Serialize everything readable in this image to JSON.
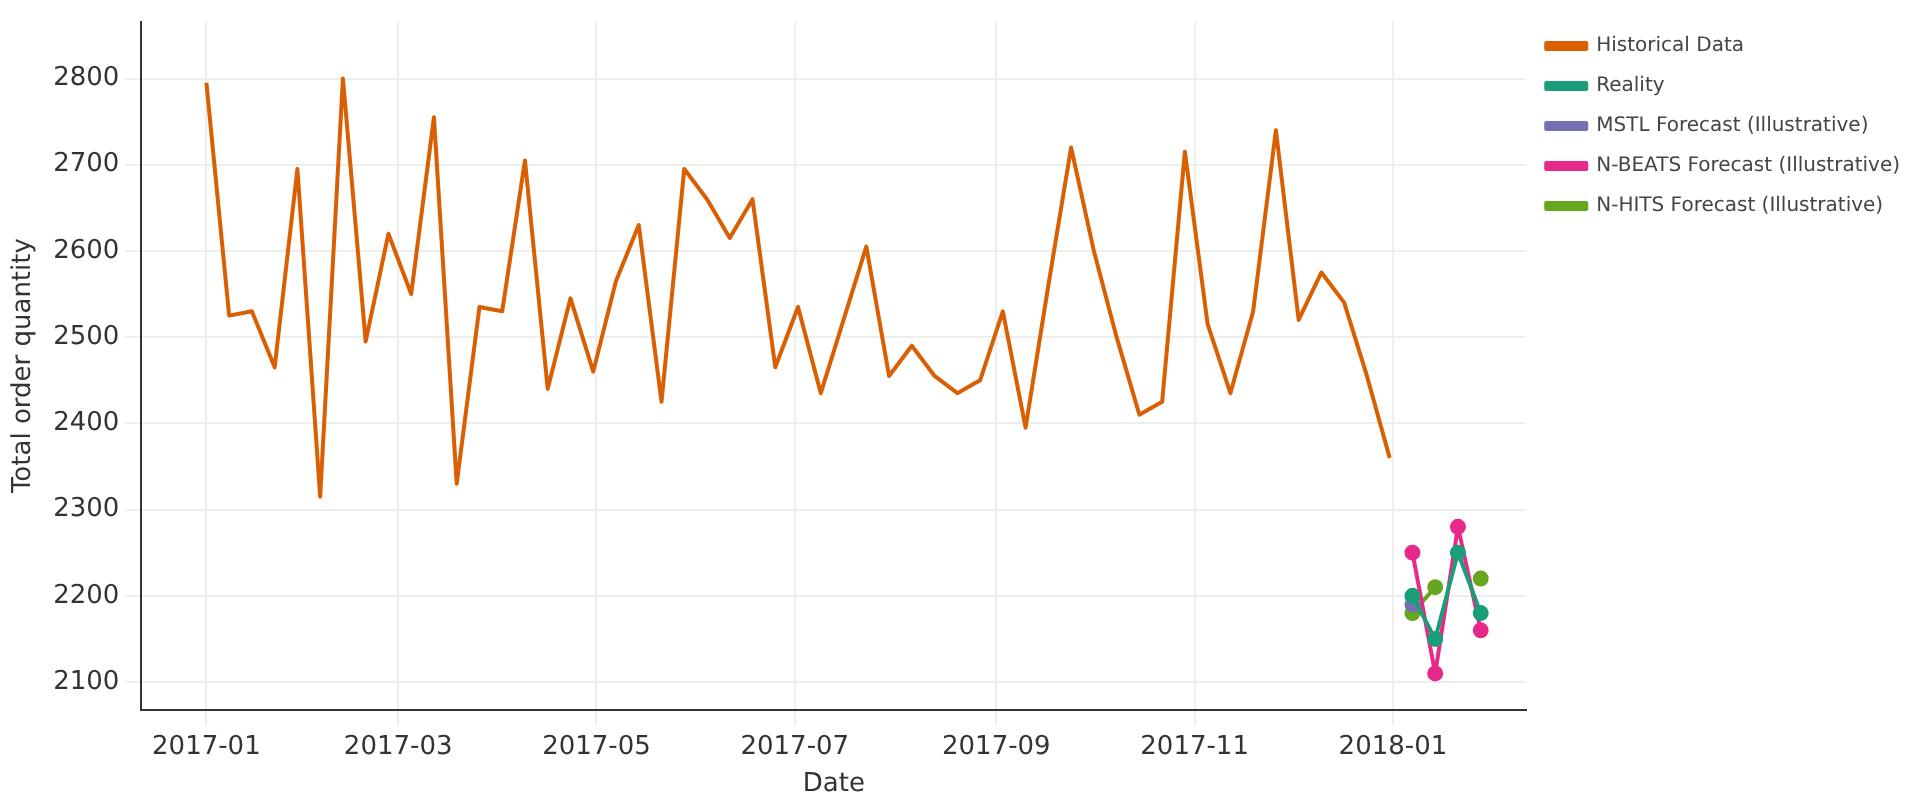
{
  "chart_data": {
    "type": "line",
    "xlabel": "Date",
    "ylabel": "Total order quantity",
    "xlim": [
      "2016-12-12",
      "2018-02-11"
    ],
    "xticks": [
      {
        "value": "2017-01-01",
        "label": "2017-01"
      },
      {
        "value": "2017-03-01",
        "label": "2017-03"
      },
      {
        "value": "2017-05-01",
        "label": "2017-05"
      },
      {
        "value": "2017-07-01",
        "label": "2017-07"
      },
      {
        "value": "2017-09-01",
        "label": "2017-09"
      },
      {
        "value": "2017-11-01",
        "label": "2017-11"
      },
      {
        "value": "2018-01-01",
        "label": "2018-01"
      }
    ],
    "ylim": [
      2068,
      2866
    ],
    "yticks": [
      2100,
      2200,
      2300,
      2400,
      2500,
      2600,
      2700,
      2800
    ],
    "grid": true,
    "legend": "right",
    "line_style": "solid",
    "series": [
      {
        "name": "Historical Data",
        "color": "#d95f02",
        "marker": "none",
        "x": [
          "2017-01-01",
          "2017-01-08",
          "2017-01-15",
          "2017-01-22",
          "2017-01-29",
          "2017-02-05",
          "2017-02-12",
          "2017-02-19",
          "2017-02-26",
          "2017-03-05",
          "2017-03-12",
          "2017-03-19",
          "2017-03-26",
          "2017-04-02",
          "2017-04-09",
          "2017-04-16",
          "2017-04-23",
          "2017-04-30",
          "2017-05-07",
          "2017-05-14",
          "2017-05-21",
          "2017-05-28",
          "2017-06-04",
          "2017-06-11",
          "2017-06-18",
          "2017-06-25",
          "2017-07-02",
          "2017-07-09",
          "2017-07-16",
          "2017-07-23",
          "2017-07-30",
          "2017-08-06",
          "2017-08-13",
          "2017-08-20",
          "2017-08-27",
          "2017-09-03",
          "2017-09-10",
          "2017-09-17",
          "2017-09-24",
          "2017-10-01",
          "2017-10-08",
          "2017-10-15",
          "2017-10-22",
          "2017-10-29",
          "2017-11-05",
          "2017-11-12",
          "2017-11-19",
          "2017-11-26",
          "2017-12-03",
          "2017-12-10",
          "2017-12-17",
          "2017-12-24",
          "2017-12-31"
        ],
        "values": [
          2795,
          2525,
          2530,
          2465,
          2695,
          2315,
          2800,
          2495,
          2620,
          2550,
          2755,
          2330,
          2535,
          2530,
          2705,
          2440,
          2545,
          2460,
          2565,
          2630,
          2425,
          2695,
          2660,
          2615,
          2660,
          2465,
          2535,
          2435,
          2520,
          2605,
          2455,
          2490,
          2455,
          2435,
          2450,
          2530,
          2395,
          2560,
          2720,
          2600,
          2500,
          2410,
          2425,
          2715,
          2515,
          2435,
          2530,
          2740,
          2520,
          2575,
          2540,
          2455,
          2360
        ]
      },
      {
        "name": "Reality",
        "color": "#1b9e77",
        "marker": "circle",
        "x": [
          "2018-01-07",
          "2018-01-14",
          "2018-01-21",
          "2018-01-28"
        ],
        "values": [
          2200,
          2150,
          2250,
          2180
        ]
      },
      {
        "name": "MSTL Forecast (Illustrative)",
        "color": "#7570b3",
        "marker": "circle",
        "x": [
          "2018-01-07"
        ],
        "values": [
          2190
        ]
      },
      {
        "name": "N-BEATS Forecast (Illustrative)",
        "color": "#e7298a",
        "marker": "circle",
        "x": [
          "2018-01-07",
          "2018-01-14",
          "2018-01-21",
          "2018-01-28"
        ],
        "values": [
          2250,
          2110,
          2280,
          2160
        ]
      },
      {
        "name": "N-HITS Forecast (Illustrative)",
        "color": "#66a61e",
        "marker": "circle",
        "x": [
          "2018-01-07",
          "2018-01-14",
          "2018-01-21",
          "2018-01-28"
        ],
        "values": [
          2180,
          2210,
          null,
          2220
        ]
      }
    ]
  }
}
